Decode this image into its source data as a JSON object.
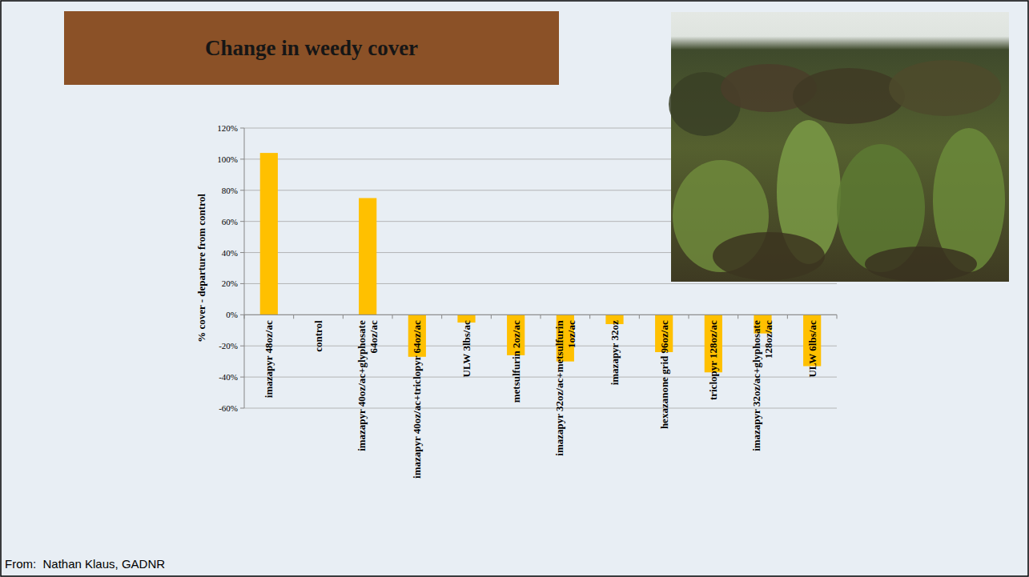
{
  "chart_data": {
    "type": "bar",
    "title": "Change in weedy cover",
    "y_label": "% cover - departure from control",
    "categories": [
      "imazapyr 48oz/ac",
      "control",
      "imazapyr 40oz/ac+glyphosate 64oz/ac",
      "imazapyr 40oz/ac+triclopyr 64oz/ac",
      "ULW 3lbs/ac",
      "metsulfurin 2oz/ac",
      "imazapyr 32oz/ac+metsulfurin 1oz/ac",
      "imazapyr 32oz",
      "hexazanone grid 96oz/ac",
      "triclopyr 128oz/ac",
      "imazapyr 32oz/ac+glyphosate 128oz/ac",
      "ULW 6lbs/ac"
    ],
    "values": [
      104,
      0,
      75,
      -27,
      -5,
      -26,
      -30,
      -6,
      -24,
      -37,
      -12,
      -33
    ],
    "color": "#ffc000",
    "ylim": [
      -60,
      120
    ],
    "yticks": [
      {
        "value": -60,
        "label": "-60%"
      },
      {
        "value": -40,
        "label": "-40%"
      },
      {
        "value": -20,
        "label": "-20%"
      },
      {
        "value": 0,
        "label": "0%"
      },
      {
        "value": 20,
        "label": "20%"
      },
      {
        "value": 40,
        "label": "40%"
      },
      {
        "value": 60,
        "label": "60%"
      },
      {
        "value": 80,
        "label": "80%"
      },
      {
        "value": 100,
        "label": "100%"
      },
      {
        "value": 120,
        "label": "120%"
      }
    ],
    "grid": true
  },
  "footer": {
    "text": "From:  Nathan Klaus, GADNR"
  }
}
